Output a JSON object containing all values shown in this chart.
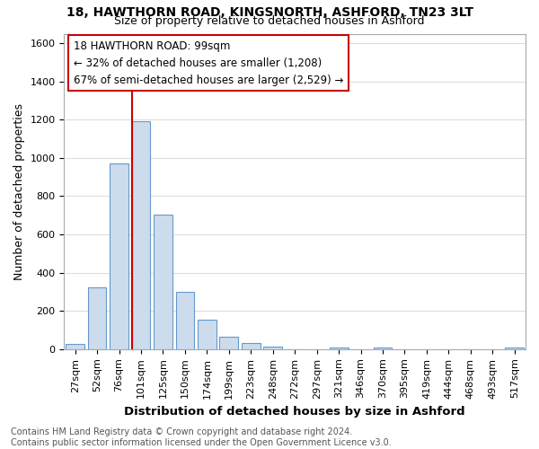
{
  "title1": "18, HAWTHORN ROAD, KINGSNORTH, ASHFORD, TN23 3LT",
  "title2": "Size of property relative to detached houses in Ashford",
  "xlabel": "Distribution of detached houses by size in Ashford",
  "ylabel": "Number of detached properties",
  "categories": [
    "27sqm",
    "52sqm",
    "76sqm",
    "101sqm",
    "125sqm",
    "150sqm",
    "174sqm",
    "199sqm",
    "223sqm",
    "248sqm",
    "272sqm",
    "297sqm",
    "321sqm",
    "346sqm",
    "370sqm",
    "395sqm",
    "419sqm",
    "444sqm",
    "468sqm",
    "493sqm",
    "517sqm"
  ],
  "values": [
    25,
    325,
    970,
    1190,
    705,
    300,
    155,
    65,
    30,
    15,
    0,
    0,
    10,
    0,
    10,
    0,
    0,
    0,
    0,
    0,
    10
  ],
  "bar_color": "#ccdcec",
  "bar_edge_color": "#6699cc",
  "vline_x_index": 3,
  "vline_color": "#cc0000",
  "ylim": [
    0,
    1650
  ],
  "annotation_text": "18 HAWTHORN ROAD: 99sqm\n← 32% of detached houses are smaller (1,208)\n67% of semi-detached houses are larger (2,529) →",
  "annotation_box_color": "#ffffff",
  "annotation_border_color": "#cc0000",
  "footer": "Contains HM Land Registry data © Crown copyright and database right 2024.\nContains public sector information licensed under the Open Government Licence v3.0.",
  "background_color": "#ffffff",
  "fig_background_color": "#ffffff",
  "grid_color": "#dddddd",
  "title1_fontsize": 10,
  "title2_fontsize": 9,
  "xlabel_fontsize": 9.5,
  "ylabel_fontsize": 9,
  "tick_fontsize": 8,
  "annotation_fontsize": 8.5,
  "footer_fontsize": 7
}
